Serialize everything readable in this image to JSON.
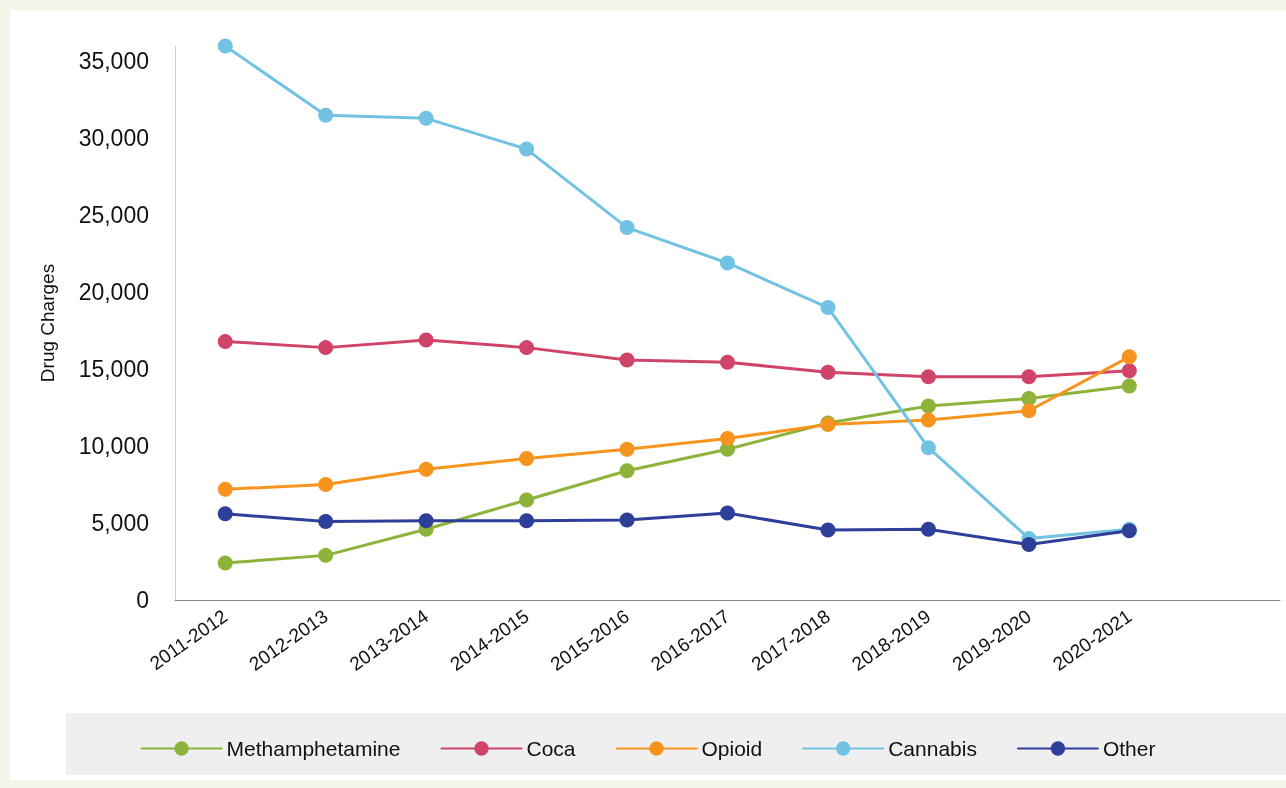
{
  "chart_data": {
    "type": "line",
    "ylabel": "Drug Charges",
    "categories": [
      "2011-2012",
      "2012-2013",
      "2013-2014",
      "2014-2015",
      "2015-2016",
      "2016-2017",
      "2017-2018",
      "2018-2019",
      "2019-2020",
      "2020-2021",
      null
    ],
    "series": [
      {
        "name": "Methamphetamine",
        "color": "#8db33a",
        "values": [
          2400,
          2900,
          4600,
          6500,
          8400,
          9800,
          11500,
          12600,
          13100,
          13900,
          null
        ]
      },
      {
        "name": "Coca",
        "color": "#d0446a",
        "values": [
          16800,
          16400,
          16900,
          16400,
          15600,
          15450,
          14800,
          14500,
          14500,
          14900,
          null
        ]
      },
      {
        "name": "Opioid",
        "color": "#f7941d",
        "values": [
          7200,
          7500,
          8500,
          9200,
          9800,
          10500,
          11400,
          11700,
          12300,
          15800,
          null
        ]
      },
      {
        "name": "Cannabis",
        "color": "#72c2e4",
        "values": [
          36000,
          31500,
          31300,
          29300,
          24200,
          21900,
          19000,
          9900,
          4000,
          4600,
          null
        ]
      },
      {
        "name": "Other",
        "color": "#2e3f99",
        "values": [
          5600,
          5100,
          5150,
          5150,
          5200,
          5650,
          4550,
          4600,
          3600,
          4500,
          null
        ]
      }
    ],
    "ylim": [
      0,
      36000
    ],
    "yticks": [
      0,
      {
        "value": 5000,
        "label": "5,000"
      },
      {
        "value": 10000,
        "label": "10,000"
      },
      {
        "value": 15000,
        "label": "15,000"
      },
      {
        "value": 20000,
        "label": "20,000"
      },
      {
        "value": 25000,
        "label": "25,000"
      },
      {
        "value": 30000,
        "label": "30,000"
      },
      {
        "value": 35000,
        "label": "35,000"
      }
    ],
    "grid": false,
    "legend": "bottom",
    "marker": "circle",
    "line_style": "solid"
  }
}
